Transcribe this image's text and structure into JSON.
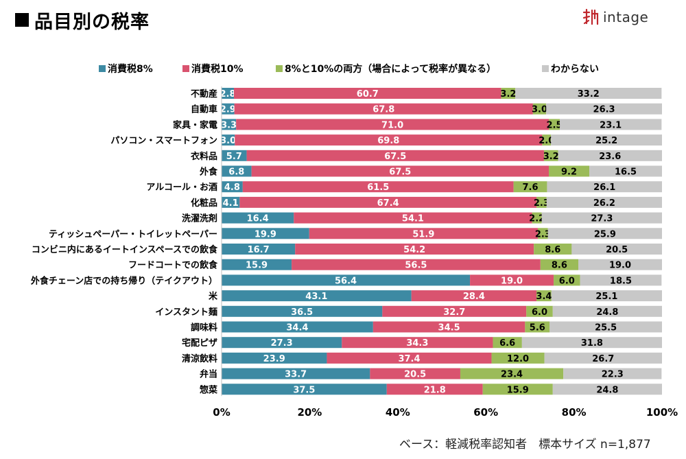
{
  "title": "品目別の税率",
  "brand": {
    "name": "intage",
    "color": "#c0272d"
  },
  "legend": [
    {
      "label": "消費税8%",
      "color": "#3d8aa3"
    },
    {
      "label": "消費税10%",
      "color": "#d9536f"
    },
    {
      "label": "8%と10%の両方（場合によって税率が異なる）",
      "color": "#9bbb59"
    },
    {
      "label": "わからない",
      "color": "#c8c8c8"
    }
  ],
  "footer": "ベース：軽減税率認知者　標本サイズ n=1,877",
  "chart_data": {
    "type": "bar",
    "orientation": "horizontal",
    "stacked": true,
    "title": "品目別の税率",
    "xlim": [
      0,
      100
    ],
    "x_ticks": [
      "0%",
      "20%",
      "40%",
      "60%",
      "80%",
      "100%"
    ],
    "legend_position": "top",
    "grid": false,
    "categories": [
      "不動産",
      "自動車",
      "家具・家電",
      "パソコン・スマートフォン",
      "衣料品",
      "外食",
      "アルコール・お酒",
      "化粧品",
      "洗濯洗剤",
      "ティッシュペーパー・トイレットペーパー",
      "コンビニ内にあるイートインスペースでの飲食",
      "フードコートでの飲食",
      "外食チェーン店での持ち帰り（テイクアウト）",
      "米",
      "インスタント麺",
      "調味料",
      "宅配ピザ",
      "清涼飲料",
      "弁当",
      "惣菜"
    ],
    "series": [
      {
        "name": "消費税8%",
        "color": "#3d8aa3",
        "values": [
          2.8,
          2.9,
          3.3,
          3.0,
          5.7,
          6.8,
          4.8,
          4.1,
          16.4,
          19.9,
          16.7,
          15.9,
          56.4,
          43.1,
          36.5,
          34.4,
          27.3,
          23.9,
          33.7,
          37.5
        ]
      },
      {
        "name": "消費税10%",
        "color": "#d9536f",
        "values": [
          60.7,
          67.8,
          71.0,
          69.8,
          67.5,
          67.5,
          61.5,
          67.4,
          54.1,
          51.9,
          54.2,
          56.5,
          19.0,
          28.4,
          32.7,
          34.5,
          34.3,
          37.4,
          20.5,
          21.8
        ]
      },
      {
        "name": "8%と10%の両方（場合によって税率が異なる）",
        "color": "#9bbb59",
        "values": [
          3.2,
          3.0,
          2.5,
          2.0,
          3.2,
          9.2,
          7.6,
          2.3,
          2.2,
          2.3,
          8.6,
          8.6,
          6.0,
          3.4,
          6.0,
          5.6,
          6.6,
          12.0,
          23.4,
          15.9
        ]
      },
      {
        "name": "わからない",
        "color": "#c8c8c8",
        "values": [
          33.2,
          26.3,
          23.1,
          25.2,
          23.6,
          16.5,
          26.1,
          26.2,
          27.3,
          25.9,
          20.5,
          19.0,
          18.5,
          25.1,
          24.8,
          25.5,
          31.8,
          26.7,
          22.3,
          24.8
        ]
      }
    ]
  }
}
